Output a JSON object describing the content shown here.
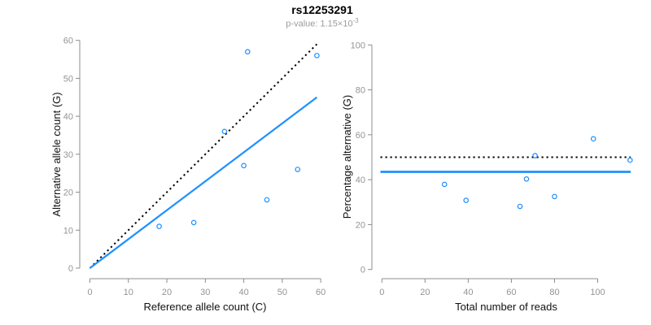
{
  "header": {
    "title": "rs12253291",
    "subtitle_prefix": "p-value: 1.15×10",
    "subtitle_exponent": "-3"
  },
  "colors": {
    "accent_blue": "#1E90FF",
    "line_black": "#000000",
    "axis_gray": "#8c8c8c",
    "tick_label_gray": "#949494",
    "axis_title_color": "#111111"
  },
  "chart_data": [
    {
      "type": "scatter",
      "name": "allele-counts",
      "xlabel": "Reference allele count (C)",
      "ylabel": "Alternative allele count (G)",
      "xlim": [
        0,
        60
      ],
      "ylim": [
        0,
        60
      ],
      "xticks": [
        0,
        10,
        20,
        30,
        40,
        50,
        60
      ],
      "yticks": [
        0,
        10,
        20,
        30,
        40,
        50,
        60
      ],
      "point_color": "#1E90FF",
      "points": [
        [
          18,
          11
        ],
        [
          27,
          12
        ],
        [
          35,
          36
        ],
        [
          40,
          27
        ],
        [
          41,
          57
        ],
        [
          46,
          18
        ],
        [
          54,
          26
        ],
        [
          59,
          56
        ]
      ],
      "lines": [
        {
          "name": "identity",
          "style": "dotted",
          "color": "#000000",
          "width": 2,
          "from": [
            0,
            0
          ],
          "to": [
            59,
            59
          ]
        },
        {
          "name": "fit",
          "style": "solid",
          "color": "#1E90FF",
          "width": 2.2,
          "from": [
            0,
            0
          ],
          "to": [
            59,
            45
          ]
        }
      ],
      "legend": null,
      "grid": false
    },
    {
      "type": "scatter",
      "name": "percentage-vs-coverage",
      "xlabel": "Total number of reads",
      "ylabel": "Percentage alternative (G)",
      "xlim": [
        0,
        115
      ],
      "ylim": [
        0,
        100
      ],
      "xticks": [
        0,
        20,
        40,
        60,
        80,
        100
      ],
      "yticks": [
        0,
        20,
        40,
        60,
        80,
        100
      ],
      "point_color": "#1E90FF",
      "points": [
        [
          29,
          37.9
        ],
        [
          39,
          30.8
        ],
        [
          64,
          28.1
        ],
        [
          67,
          40.3
        ],
        [
          71,
          50.7
        ],
        [
          80,
          32.5
        ],
        [
          98,
          58.2
        ],
        [
          115,
          48.7
        ]
      ],
      "lines": [
        {
          "name": "expected-pct",
          "style": "dotted",
          "color": "#000000",
          "width": 2,
          "y": 50
        },
        {
          "name": "observed-pct",
          "style": "solid",
          "color": "#1E90FF",
          "width": 2.8,
          "y": 43.5
        }
      ],
      "legend": null,
      "grid": false
    }
  ]
}
